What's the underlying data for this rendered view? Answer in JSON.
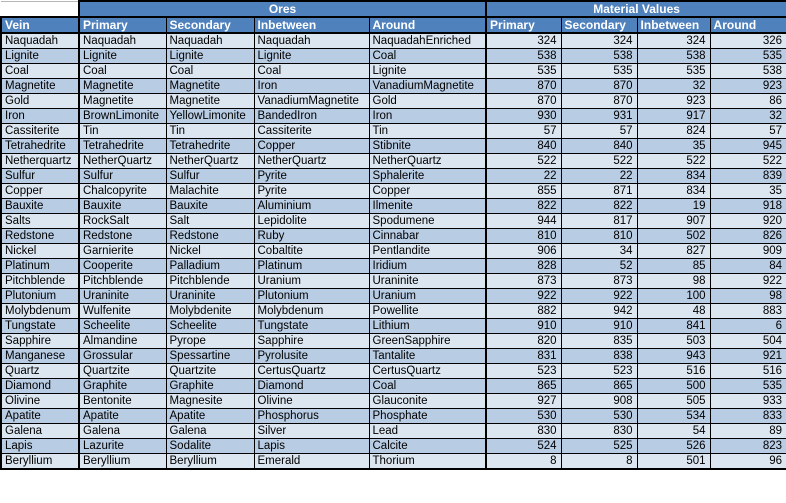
{
  "app": {
    "description": "Spreadsheet of ore veins with their generated ores and material values"
  },
  "colors": {
    "header_bg": "#4f81bd",
    "header_text": "#ffffff",
    "row_light": "#dce6f1",
    "row_medium": "#b8cce4",
    "grid_border": "#000000"
  },
  "table": {
    "corner": "",
    "groups": [
      {
        "label": "Ores",
        "span": 4
      },
      {
        "label": "Material Values",
        "span": 4
      }
    ],
    "columns": [
      "Vein",
      "Primary",
      "Secondary",
      "Inbetween",
      "Around",
      "Primary",
      "Secondary",
      "Inbetween",
      "Around"
    ],
    "rows": [
      {
        "vein": "Naquadah",
        "ores": [
          "Naquadah",
          "Naquadah",
          "Naquadah",
          "NaquadahEnriched"
        ],
        "values": [
          324,
          324,
          324,
          326
        ]
      },
      {
        "vein": "Lignite",
        "ores": [
          "Lignite",
          "Lignite",
          "Lignite",
          "Coal"
        ],
        "values": [
          538,
          538,
          538,
          535
        ]
      },
      {
        "vein": "Coal",
        "ores": [
          "Coal",
          "Coal",
          "Coal",
          "Lignite"
        ],
        "values": [
          535,
          535,
          535,
          538
        ]
      },
      {
        "vein": "Magnetite",
        "ores": [
          "Magnetite",
          "Magnetite",
          "Iron",
          "VanadiumMagnetite"
        ],
        "values": [
          870,
          870,
          32,
          923
        ]
      },
      {
        "vein": "Gold",
        "ores": [
          "Magnetite",
          "Magnetite",
          "VanadiumMagnetite",
          "Gold"
        ],
        "values": [
          870,
          870,
          923,
          86
        ]
      },
      {
        "vein": "Iron",
        "ores": [
          "BrownLimonite",
          "YellowLimonite",
          "BandedIron",
          "Iron"
        ],
        "values": [
          930,
          931,
          917,
          32
        ]
      },
      {
        "vein": "Cassiterite",
        "ores": [
          "Tin",
          "Tin",
          "Cassiterite",
          "Tin"
        ],
        "values": [
          57,
          57,
          824,
          57
        ]
      },
      {
        "vein": "Tetrahedrite",
        "ores": [
          "Tetrahedrite",
          "Tetrahedrite",
          "Copper",
          "Stibnite"
        ],
        "values": [
          840,
          840,
          35,
          945
        ]
      },
      {
        "vein": "Netherquartz",
        "ores": [
          "NetherQuartz",
          "NetherQuartz",
          "NetherQuartz",
          "NetherQuartz"
        ],
        "values": [
          522,
          522,
          522,
          522
        ]
      },
      {
        "vein": "Sulfur",
        "ores": [
          "Sulfur",
          "Sulfur",
          "Pyrite",
          "Sphalerite"
        ],
        "values": [
          22,
          22,
          834,
          839
        ]
      },
      {
        "vein": "Copper",
        "ores": [
          "Chalcopyrite",
          "Malachite",
          "Pyrite",
          "Copper"
        ],
        "values": [
          855,
          871,
          834,
          35
        ]
      },
      {
        "vein": "Bauxite",
        "ores": [
          "Bauxite",
          "Bauxite",
          "Aluminium",
          "Ilmenite"
        ],
        "values": [
          822,
          822,
          19,
          918
        ]
      },
      {
        "vein": "Salts",
        "ores": [
          "RockSalt",
          "Salt",
          "Lepidolite",
          "Spodumene"
        ],
        "values": [
          944,
          817,
          907,
          920
        ]
      },
      {
        "vein": "Redstone",
        "ores": [
          "Redstone",
          "Redstone",
          "Ruby",
          "Cinnabar"
        ],
        "values": [
          810,
          810,
          502,
          826
        ]
      },
      {
        "vein": "Nickel",
        "ores": [
          "Garnierite",
          "Nickel",
          "Cobaltite",
          "Pentlandite"
        ],
        "values": [
          906,
          34,
          827,
          909
        ]
      },
      {
        "vein": "Platinum",
        "ores": [
          "Cooperite",
          "Palladium",
          "Platinum",
          "Iridium"
        ],
        "values": [
          828,
          52,
          85,
          84
        ]
      },
      {
        "vein": "Pitchblende",
        "ores": [
          "Pitchblende",
          "Pitchblende",
          "Uranium",
          "Uraninite"
        ],
        "values": [
          873,
          873,
          98,
          922
        ]
      },
      {
        "vein": "Plutonium",
        "ores": [
          "Uraninite",
          "Uraninite",
          "Plutonium",
          "Uranium"
        ],
        "values": [
          922,
          922,
          100,
          98
        ]
      },
      {
        "vein": "Molybdenum",
        "ores": [
          "Wulfenite",
          "Molybdenite",
          "Molybdenum",
          "Powellite"
        ],
        "values": [
          882,
          942,
          48,
          883
        ]
      },
      {
        "vein": "Tungstate",
        "ores": [
          "Scheelite",
          "Scheelite",
          "Tungstate",
          "Lithium"
        ],
        "values": [
          910,
          910,
          841,
          6
        ]
      },
      {
        "vein": "Sapphire",
        "ores": [
          "Almandine",
          "Pyrope",
          "Sapphire",
          "GreenSapphire"
        ],
        "values": [
          820,
          835,
          503,
          504
        ]
      },
      {
        "vein": "Manganese",
        "ores": [
          "Grossular",
          "Spessartine",
          "Pyrolusite",
          "Tantalite"
        ],
        "values": [
          831,
          838,
          943,
          921
        ]
      },
      {
        "vein": "Quartz",
        "ores": [
          "Quartzite",
          "Quartzite",
          "CertusQuartz",
          "CertusQuartz"
        ],
        "values": [
          523,
          523,
          516,
          516
        ]
      },
      {
        "vein": "Diamond",
        "ores": [
          "Graphite",
          "Graphite",
          "Diamond",
          "Coal"
        ],
        "values": [
          865,
          865,
          500,
          535
        ]
      },
      {
        "vein": "Olivine",
        "ores": [
          "Bentonite",
          "Magnesite",
          "Olivine",
          "Glauconite"
        ],
        "values": [
          927,
          908,
          505,
          933
        ]
      },
      {
        "vein": "Apatite",
        "ores": [
          "Apatite",
          "Apatite",
          "Phosphorus",
          "Phosphate"
        ],
        "values": [
          530,
          530,
          534,
          833
        ]
      },
      {
        "vein": "Galena",
        "ores": [
          "Galena",
          "Galena",
          "Silver",
          "Lead"
        ],
        "values": [
          830,
          830,
          54,
          89
        ]
      },
      {
        "vein": "Lapis",
        "ores": [
          "Lazurite",
          "Sodalite",
          "Lapis",
          "Calcite"
        ],
        "values": [
          524,
          525,
          526,
          823
        ]
      },
      {
        "vein": "Beryllium",
        "ores": [
          "Beryllium",
          "Beryllium",
          "Emerald",
          "Thorium"
        ],
        "values": [
          8,
          8,
          501,
          96
        ]
      }
    ]
  }
}
